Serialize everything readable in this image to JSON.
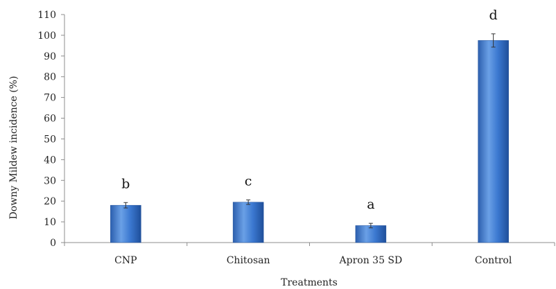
{
  "chart_data": {
    "type": "bar",
    "title": "",
    "xlabel": "Treatments",
    "ylabel": "Downy Mildew incidence (%)",
    "ylim": [
      0,
      110
    ],
    "yticks": [
      0,
      10,
      20,
      30,
      40,
      50,
      60,
      70,
      80,
      90,
      100,
      110
    ],
    "categories": [
      "CNP",
      "Chitosan",
      "Apron 35 SD",
      "Control"
    ],
    "values": [
      18,
      19.5,
      8.2,
      97.5
    ],
    "errors": [
      1.3,
      1.1,
      1.1,
      3.2
    ],
    "annotations": [
      "b",
      "c",
      "a",
      "d"
    ],
    "grid": false,
    "colors": {
      "bar_light": "#6aa0e6",
      "bar_mid": "#3b78d0",
      "bar_dark": "#1f4f9a",
      "axis": "#8c8c8c"
    }
  }
}
